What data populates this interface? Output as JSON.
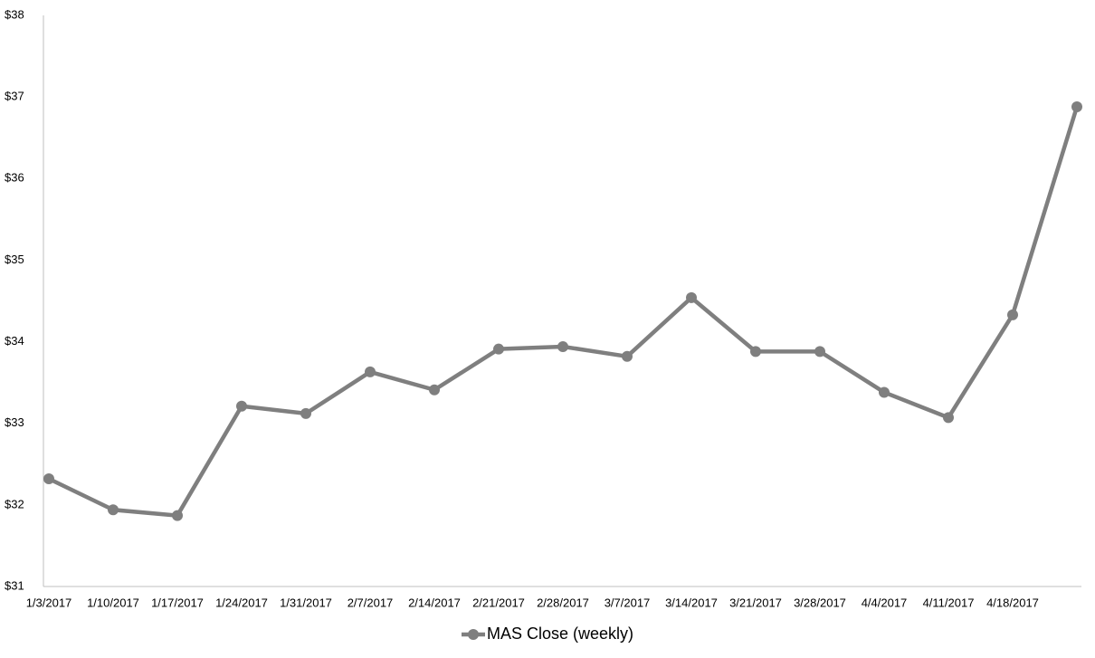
{
  "chart_data": {
    "type": "line",
    "categories": [
      "1/3/2017",
      "1/10/2017",
      "1/17/2017",
      "1/24/2017",
      "1/31/2017",
      "2/7/2017",
      "2/14/2017",
      "2/21/2017",
      "2/28/2017",
      "3/7/2017",
      "3/14/2017",
      "3/21/2017",
      "3/28/2017",
      "4/4/2017",
      "4/11/2017",
      "4/18/2017",
      null
    ],
    "series": [
      {
        "name": "MAS Close (weekly)",
        "color": "#7f7f7f",
        "values": [
          32.32,
          31.94,
          31.87,
          33.21,
          33.12,
          33.63,
          33.41,
          33.91,
          33.94,
          33.82,
          34.54,
          33.88,
          33.88,
          33.38,
          33.07,
          34.33,
          36.88
        ]
      }
    ],
    "ylim": [
      31,
      38
    ],
    "yticks": [
      {
        "value": 31,
        "label": "$31"
      },
      {
        "value": 32,
        "label": "$32"
      },
      {
        "value": 33,
        "label": "$33"
      },
      {
        "value": 34,
        "label": "$34"
      },
      {
        "value": 35,
        "label": "$35"
      },
      {
        "value": 36,
        "label": "$36"
      },
      {
        "value": 37,
        "label": "$37"
      },
      {
        "value": 38,
        "label": "$38"
      }
    ],
    "grid": false,
    "legend": "bottom"
  }
}
